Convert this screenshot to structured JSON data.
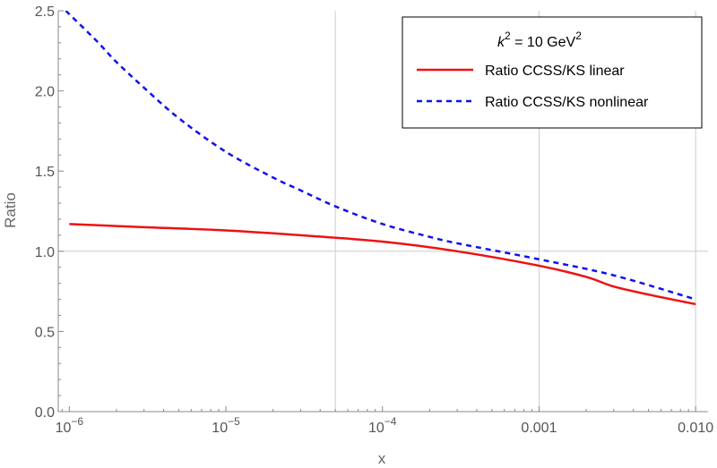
{
  "chart_data": {
    "type": "line",
    "title": "",
    "xlabel": "x",
    "ylabel": "Ratio",
    "xscale": "log",
    "xlim": [
      8.5e-07,
      0.012
    ],
    "ylim": [
      0,
      2.5
    ],
    "grid_x": [
      5e-05,
      0.001,
      0.01
    ],
    "grid_y": [
      1.0
    ],
    "x_ticks": [
      {
        "value": 1e-06,
        "base": "10",
        "exp": "−6"
      },
      {
        "value": 1e-05,
        "base": "10",
        "exp": "−5"
      },
      {
        "value": 0.0001,
        "base": "10",
        "exp": "−4"
      },
      {
        "value": 0.001,
        "label": "0.001"
      },
      {
        "value": 0.01,
        "label": "0.010"
      }
    ],
    "y_ticks": [
      {
        "value": 0.0,
        "label": "0.0"
      },
      {
        "value": 0.5,
        "label": "0.5"
      },
      {
        "value": 1.0,
        "label": "1.0"
      },
      {
        "value": 1.5,
        "label": "1.5"
      },
      {
        "value": 2.0,
        "label": "2.0"
      },
      {
        "value": 2.5,
        "label": "2.5"
      }
    ],
    "legend": {
      "position": "top-right",
      "title_parts": {
        "k": "k",
        "k_exp": "2",
        "eq": " = 10 GeV",
        "unit_exp": "2"
      }
    },
    "series": [
      {
        "name": "Ratio CCSS/KS linear",
        "color": "#ee1111",
        "dash": "solid",
        "x": [
          1e-06,
          3e-06,
          1e-05,
          3e-05,
          0.0001,
          0.0003,
          0.001,
          0.002,
          0.003,
          0.005,
          0.01
        ],
        "y": [
          1.17,
          1.15,
          1.13,
          1.1,
          1.06,
          1.0,
          0.91,
          0.84,
          0.78,
          0.73,
          0.67
        ]
      },
      {
        "name": "Ratio CCSS/KS nonlinear",
        "color": "#1111ee",
        "dash": "dashed",
        "x": [
          9.5e-07,
          1.5e-06,
          2e-06,
          3e-06,
          5e-06,
          1e-05,
          2e-05,
          3e-05,
          5e-05,
          0.0001,
          0.0002,
          0.0003,
          0.001,
          0.003,
          0.01
        ],
        "y": [
          2.5,
          2.31,
          2.18,
          2.02,
          1.83,
          1.62,
          1.46,
          1.38,
          1.28,
          1.17,
          1.09,
          1.05,
          0.95,
          0.85,
          0.7
        ]
      }
    ]
  }
}
